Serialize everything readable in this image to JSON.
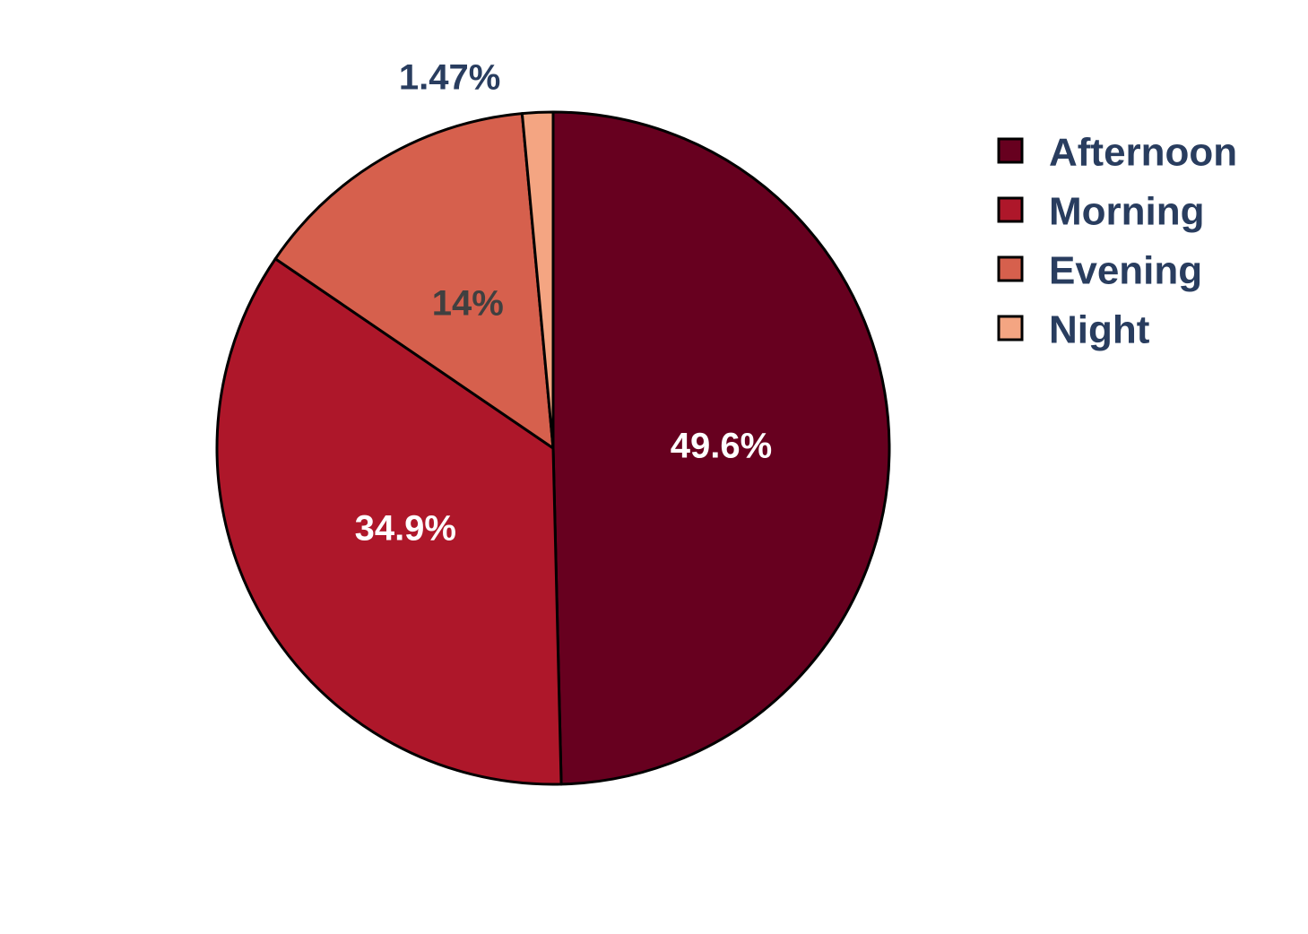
{
  "chart_data": {
    "type": "pie",
    "categories": [
      "Afternoon",
      "Morning",
      "Evening",
      "Night"
    ],
    "values": [
      49.6,
      34.9,
      14,
      1.47
    ],
    "value_labels": [
      "49.6%",
      "34.9%",
      "14%",
      "1.47%"
    ],
    "colors": [
      "#67001f",
      "#ae172a",
      "#d6604d",
      "#f4a582"
    ],
    "label_colors": [
      "#ffffff",
      "#ffffff",
      "#404040",
      "#293d5f"
    ],
    "legend_text_color": "#293d5f",
    "legend": {
      "position": "top-right",
      "entries": [
        "Afternoon",
        "Morning",
        "Evening",
        "Night"
      ]
    },
    "start_angle": "12 o'clock",
    "direction": "clockwise"
  }
}
